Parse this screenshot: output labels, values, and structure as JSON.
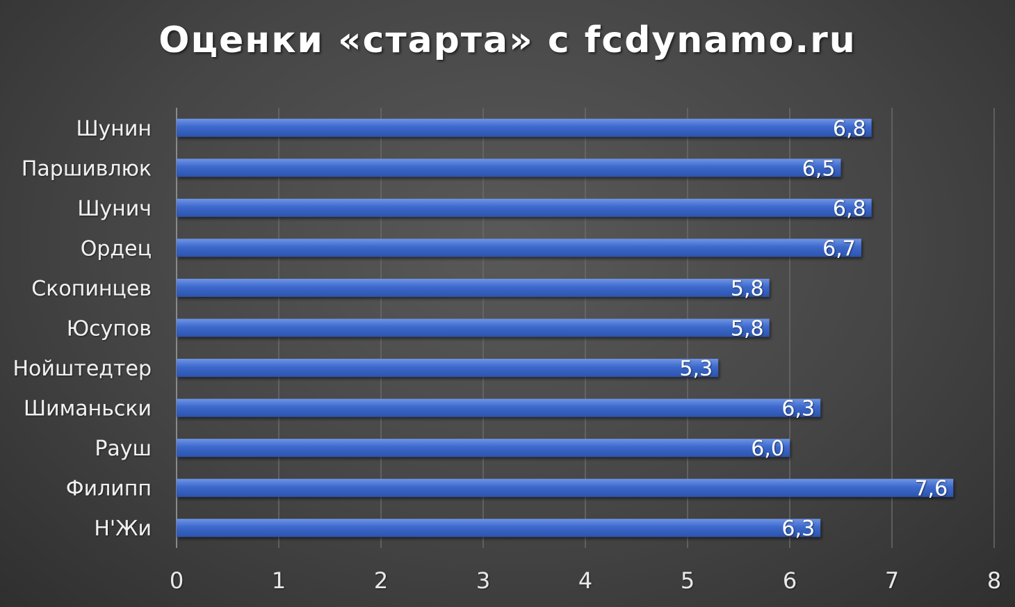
{
  "chart_data": {
    "type": "bar",
    "orientation": "horizontal",
    "title": "Оценки «старта» с fcdynamo.ru",
    "categories": [
      "Шунин",
      "Паршивлюк",
      "Шунич",
      "Ордец",
      "Скопинцев",
      "Юсупов",
      "Нойштедтер",
      "Шиманьски",
      "Рауш",
      "Филипп",
      "Н'Жи"
    ],
    "values": [
      6.8,
      6.5,
      6.8,
      6.7,
      5.8,
      5.8,
      5.3,
      6.3,
      6.0,
      7.6,
      6.3
    ],
    "value_labels": [
      "6,8",
      "6,5",
      "6,8",
      "6,7",
      "5,8",
      "5,8",
      "5,3",
      "6,3",
      "6,0",
      "7,6",
      "6,3"
    ],
    "xlim": [
      0,
      8
    ],
    "x_ticks": [
      "0",
      "1",
      "2",
      "3",
      "4",
      "5",
      "6",
      "7",
      "8"
    ],
    "grid": "vertical",
    "legend": "none",
    "colors": {
      "bar": "#3a66c8",
      "bar_highlight": "#5b85e0",
      "background": "#474747",
      "grid": "#6a6a6a",
      "text": "#ffffff"
    }
  }
}
